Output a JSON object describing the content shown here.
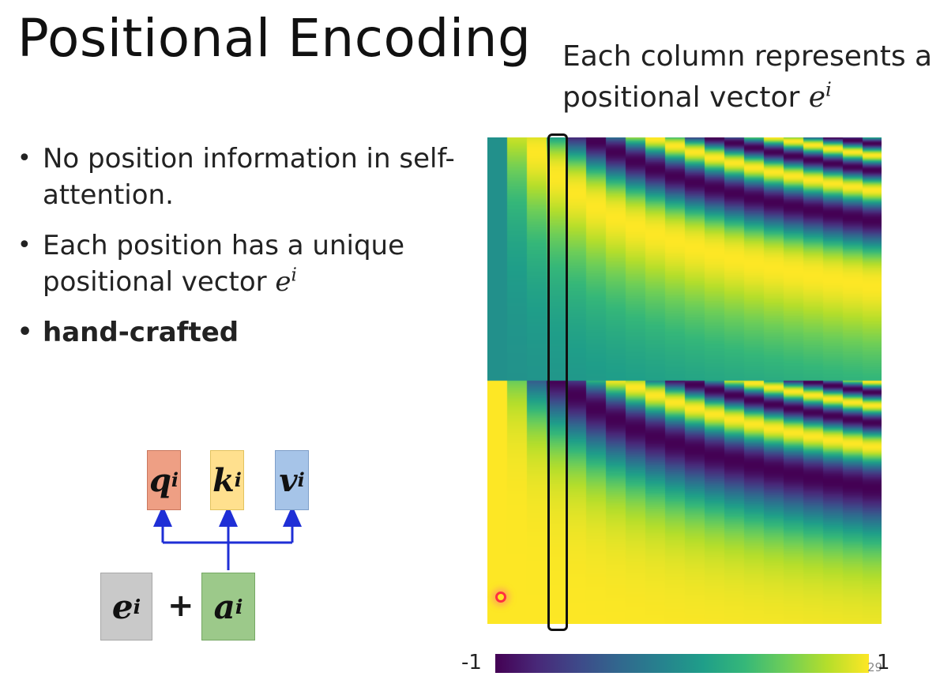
{
  "slide": {
    "title": "Positional Encoding",
    "caption_line1": "Each column represents a",
    "caption_line2": "positional vector ",
    "page_number": "29"
  },
  "math": {
    "vec_base": "e",
    "vec_sup": "i"
  },
  "bullets": [
    {
      "text": "No position information in self-attention."
    },
    {
      "text": "Each position has a unique positional vector "
    },
    {
      "text": "hand-crafted"
    }
  ],
  "diagram": {
    "q_base": "q",
    "q_sup": "i",
    "k_base": "k",
    "k_sup": "i",
    "v_base": "v",
    "v_sup": "i",
    "e_base": "e",
    "e_sup": "i",
    "a_base": "a",
    "a_sup": "i",
    "plus": "+",
    "colors": {
      "q": "#ee9f84",
      "k": "#ffe08e",
      "v": "#a6c4e8",
      "e": "#c9c9c9",
      "a": "#9cc98a",
      "arrow": "#1f2fd6"
    }
  },
  "heatmap": {
    "colormap": "viridis",
    "colorbar_min_label": "-1",
    "colorbar_max_label": "1",
    "value_range": [
      -1,
      1
    ],
    "highlighted_column": 4
  }
}
